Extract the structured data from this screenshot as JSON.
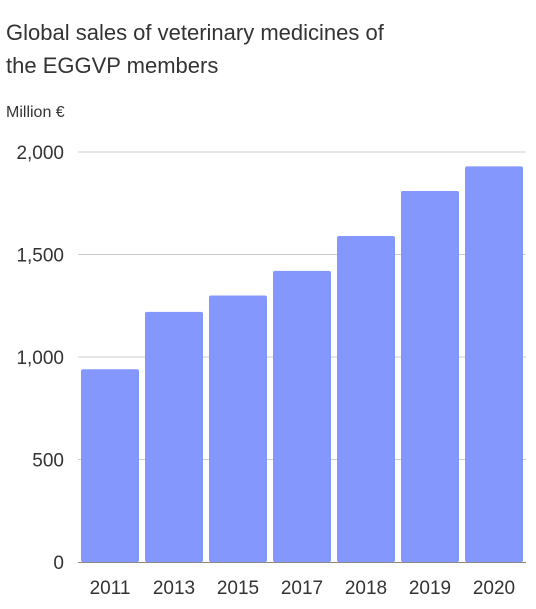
{
  "chart_data": {
    "type": "bar",
    "title_lines": [
      "Global sales of veterinary medicines of",
      "the EGGVP members"
    ],
    "ylabel": "Million €",
    "xlabel": "",
    "categories": [
      "2011",
      "2013",
      "2015",
      "2017",
      "2018",
      "2019",
      "2020"
    ],
    "values": [
      940,
      1220,
      1300,
      1420,
      1590,
      1810,
      1930
    ],
    "ylim": [
      0,
      2000
    ],
    "yticks": [
      "0",
      "500",
      "1,000",
      "1,500",
      "2,000"
    ],
    "ytick_values": [
      0,
      500,
      1000,
      1500,
      2000
    ],
    "grid": true,
    "legend": "none",
    "bar_color": "#8397FD"
  }
}
